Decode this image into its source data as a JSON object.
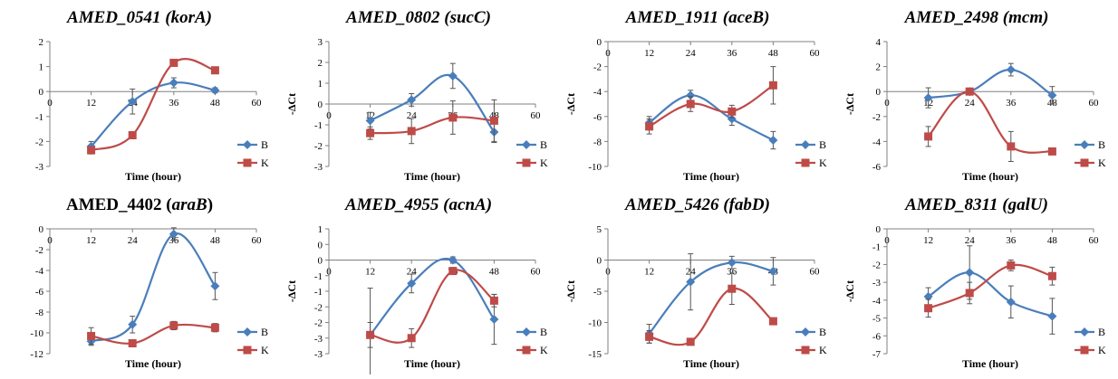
{
  "figure": {
    "background": "#ffffff"
  },
  "colors": {
    "B": "#4A7EBB",
    "K": "#BE4B48"
  },
  "chart_data": [
    {
      "type": "line",
      "title_gene": "AMED_0541",
      "title_sym": "korA",
      "title_italic": true,
      "xlabel": "Time (hour)",
      "ylabel": "",
      "xlim": [
        0,
        60
      ],
      "ylim": [
        -3,
        2
      ],
      "xticks": [
        0,
        12,
        24,
        36,
        48,
        60
      ],
      "yticks": [
        2,
        1,
        0,
        -1,
        -2,
        -3
      ],
      "x": [
        12,
        24,
        36,
        48
      ],
      "series": [
        {
          "name": "B",
          "values": [
            -2.2,
            -0.4,
            0.35,
            0.05
          ],
          "err": [
            0.2,
            0.5,
            0.2,
            0.1
          ]
        },
        {
          "name": "K",
          "values": [
            -2.35,
            -1.75,
            1.15,
            0.85
          ],
          "err": [
            0.15,
            0.1,
            0.1,
            0.1
          ]
        }
      ]
    },
    {
      "type": "line",
      "title_gene": "AMED_0802",
      "title_sym": "sucC",
      "title_italic": true,
      "xlabel": "Time (hour)",
      "ylabel": "-ΔCt",
      "xlim": [
        0,
        60
      ],
      "ylim": [
        -3,
        3
      ],
      "xticks": [
        0,
        12,
        24,
        36,
        48,
        60
      ],
      "yticks": [
        3,
        2,
        1,
        0,
        -1,
        -2,
        -3
      ],
      "x": [
        12,
        24,
        36,
        48
      ],
      "series": [
        {
          "name": "B",
          "values": [
            -0.8,
            0.2,
            1.35,
            -1.35
          ],
          "err": [
            0.4,
            0.3,
            0.6,
            0.5
          ]
        },
        {
          "name": "K",
          "values": [
            -1.4,
            -1.3,
            -0.65,
            -0.8
          ],
          "err": [
            0.3,
            0.6,
            0.8,
            1.0
          ]
        }
      ]
    },
    {
      "type": "line",
      "title_gene": "AMED_1911",
      "title_sym": "aceB",
      "title_italic": true,
      "xlabel": "Time (hour)",
      "ylabel": "-ΔCt",
      "xlim": [
        0,
        60
      ],
      "ylim": [
        -10,
        0
      ],
      "xticks": [
        0,
        12,
        24,
        36,
        48,
        60
      ],
      "yticks": [
        0,
        -2,
        -4,
        -6,
        -8,
        -10
      ],
      "x": [
        12,
        24,
        36,
        48
      ],
      "series": [
        {
          "name": "B",
          "values": [
            -6.5,
            -4.3,
            -6.2,
            -7.9
          ],
          "err": [
            0.5,
            0.4,
            0.5,
            0.7
          ]
        },
        {
          "name": "K",
          "values": [
            -6.8,
            -5.0,
            -5.6,
            -3.5
          ],
          "err": [
            0.6,
            0.6,
            0.5,
            1.5
          ]
        }
      ]
    },
    {
      "type": "line",
      "title_gene": "AMED_2498",
      "title_sym": "mcm",
      "title_italic": true,
      "xlabel": "Time (hour)",
      "ylabel": "-ΔCt",
      "xlim": [
        0,
        60
      ],
      "ylim": [
        -6,
        4
      ],
      "xticks": [
        0,
        12,
        24,
        36,
        48,
        60
      ],
      "yticks": [
        4,
        2,
        0,
        -2,
        -4,
        -6
      ],
      "x": [
        12,
        24,
        36,
        48
      ],
      "series": [
        {
          "name": "B",
          "values": [
            -0.5,
            0.0,
            1.75,
            -0.3
          ],
          "err": [
            0.8,
            0.2,
            0.5,
            0.7
          ]
        },
        {
          "name": "K",
          "values": [
            -3.6,
            0.0,
            -4.4,
            -4.8
          ],
          "err": [
            0.8,
            0.2,
            1.2,
            0.2
          ]
        }
      ]
    },
    {
      "type": "line",
      "title_gene": "AMED_4402",
      "title_sym": "araB",
      "title_italic": false,
      "xlabel": "Time (hour)",
      "ylabel": "",
      "xlim": [
        0,
        60
      ],
      "ylim": [
        -12,
        0
      ],
      "xticks": [
        0,
        12,
        24,
        36,
        48,
        60
      ],
      "yticks": [
        0,
        -2,
        -4,
        -6,
        -8,
        -10,
        -12
      ],
      "x": [
        12,
        24,
        36,
        48
      ],
      "series": [
        {
          "name": "B",
          "values": [
            -10.8,
            -9.2,
            -0.5,
            -5.5
          ],
          "err": [
            0.4,
            0.8,
            0.6,
            1.3
          ]
        },
        {
          "name": "K",
          "values": [
            -10.3,
            -11.0,
            -9.3,
            -9.5
          ],
          "err": [
            0.8,
            0.2,
            0.4,
            0.4
          ]
        }
      ]
    },
    {
      "type": "line",
      "title_gene": "AMED_4955",
      "title_sym": "acnA",
      "title_italic": true,
      "xlabel": "Time (hour)",
      "ylabel": "-ΔCt",
      "xlim": [
        0,
        60
      ],
      "ylim": [
        -3,
        1
      ],
      "xticks": [
        0,
        12,
        24,
        36,
        48,
        60
      ],
      "yticks": [
        1,
        0.5,
        0,
        -0.5,
        -1,
        -1.5,
        -2,
        -2.5,
        -3
      ],
      "ytick_labels": [
        "1",
        "0",
        "0",
        "-1",
        "-1",
        "-2",
        "-2",
        "-3",
        "-3"
      ],
      "x": [
        12,
        24,
        36,
        48
      ],
      "series": [
        {
          "name": "B",
          "values": [
            -2.4,
            -0.75,
            0.0,
            -1.9
          ],
          "err": [
            1.5,
            0.3,
            0.1,
            0.8
          ]
        },
        {
          "name": "K",
          "values": [
            -2.4,
            -2.5,
            -0.35,
            -1.3
          ],
          "err": [
            0.4,
            0.3,
            0.1,
            0.2
          ]
        }
      ]
    },
    {
      "type": "line",
      "title_gene": "AMED_5426",
      "title_sym": "fabD",
      "title_italic": true,
      "xlabel": "Time (hour)",
      "ylabel": "-ΔCt",
      "xlim": [
        0,
        60
      ],
      "ylim": [
        -15,
        5
      ],
      "xticks": [
        0,
        12,
        24,
        36,
        48,
        60
      ],
      "yticks": [
        5,
        0,
        -5,
        -10,
        -15
      ],
      "x": [
        12,
        24,
        36,
        48
      ],
      "series": [
        {
          "name": "B",
          "values": [
            -11.8,
            -3.5,
            -0.4,
            -1.8
          ],
          "err": [
            1.5,
            4.5,
            1.0,
            2.2
          ]
        },
        {
          "name": "K",
          "values": [
            -12.3,
            -13.1,
            -4.6,
            -9.8
          ],
          "err": [
            1.0,
            0.4,
            2.5,
            0.4
          ]
        }
      ]
    },
    {
      "type": "line",
      "title_gene": "AMED_8311",
      "title_sym": "galU",
      "title_italic": true,
      "xlabel": "Time (hour)",
      "ylabel": "-ΔCt",
      "xlim": [
        0,
        60
      ],
      "ylim": [
        -7,
        0
      ],
      "xticks": [
        0,
        12,
        24,
        36,
        48,
        60
      ],
      "yticks": [
        0,
        -1,
        -2,
        -3,
        -4,
        -5,
        -6,
        -7
      ],
      "x": [
        12,
        24,
        36,
        48
      ],
      "series": [
        {
          "name": "B",
          "values": [
            -3.8,
            -2.45,
            -4.1,
            -4.9
          ],
          "err": [
            0.5,
            1.5,
            0.9,
            1.0
          ]
        },
        {
          "name": "K",
          "values": [
            -4.45,
            -3.6,
            -2.05,
            -2.65
          ],
          "err": [
            0.5,
            0.6,
            0.3,
            0.5
          ]
        }
      ]
    }
  ]
}
